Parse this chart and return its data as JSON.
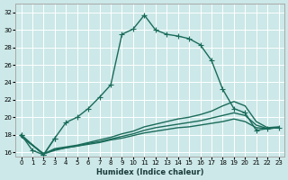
{
  "xlabel": "Humidex (Indice chaleur)",
  "bg_color": "#cce8e8",
  "grid_color": "#ffffff",
  "line_color": "#1a6b5a",
  "xlim": [
    -0.5,
    23.5
  ],
  "ylim": [
    15.5,
    33.0
  ],
  "xticks": [
    0,
    1,
    2,
    3,
    4,
    5,
    6,
    7,
    8,
    9,
    10,
    11,
    12,
    13,
    14,
    15,
    16,
    17,
    18,
    19,
    20,
    21,
    22,
    23
  ],
  "yticks": [
    16,
    18,
    20,
    22,
    24,
    26,
    28,
    30,
    32
  ],
  "series_marked": [
    [
      18.0,
      16.2,
      15.7,
      17.6,
      19.4,
      20.0,
      21.0,
      22.3,
      23.7,
      29.5,
      30.1,
      31.7,
      30.0,
      29.5,
      29.3,
      29.0,
      28.3,
      26.5,
      23.2,
      21.0,
      20.5,
      18.5,
      18.7,
      18.8
    ],
    [
      18.0,
      null,
      15.7,
      17.6,
      null,
      null,
      null,
      null,
      null,
      null,
      null,
      null,
      null,
      null,
      null,
      null,
      null,
      null,
      null,
      null,
      null,
      null,
      null,
      null
    ]
  ],
  "series_plain": [
    [
      17.8,
      null,
      15.8,
      16.2,
      16.5,
      16.7,
      16.9,
      17.1,
      17.4,
      17.6,
      17.9,
      18.2,
      18.4,
      18.6,
      18.8,
      18.9,
      19.1,
      19.3,
      19.5,
      19.8,
      19.5,
      18.8,
      18.7,
      18.8
    ],
    [
      17.8,
      null,
      15.8,
      16.3,
      16.5,
      16.7,
      17.0,
      17.2,
      17.5,
      17.8,
      18.1,
      18.5,
      18.8,
      19.0,
      19.2,
      19.4,
      19.6,
      19.9,
      20.2,
      20.5,
      20.2,
      19.1,
      18.7,
      18.8
    ],
    [
      17.8,
      null,
      15.8,
      16.4,
      16.6,
      16.8,
      17.1,
      17.4,
      17.7,
      18.1,
      18.4,
      18.9,
      19.2,
      19.5,
      19.8,
      20.0,
      20.3,
      20.7,
      21.3,
      21.8,
      21.3,
      19.5,
      18.8,
      18.9
    ]
  ],
  "marker_size": 2.5,
  "linewidth": 1.0
}
